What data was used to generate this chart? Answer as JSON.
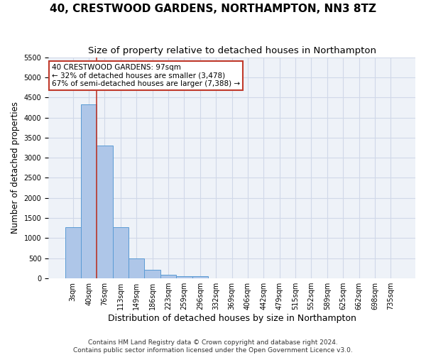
{
  "title": "40, CRESTWOOD GARDENS, NORTHAMPTON, NN3 8TZ",
  "subtitle": "Size of property relative to detached houses in Northampton",
  "xlabel": "Distribution of detached houses by size in Northampton",
  "ylabel": "Number of detached properties",
  "bar_values": [
    1270,
    4330,
    3300,
    1280,
    490,
    210,
    85,
    60,
    55,
    0,
    0,
    0,
    0,
    0,
    0,
    0,
    0,
    0,
    0,
    0,
    0
  ],
  "bar_labels": [
    "3sqm",
    "40sqm",
    "76sqm",
    "113sqm",
    "149sqm",
    "186sqm",
    "223sqm",
    "259sqm",
    "296sqm",
    "332sqm",
    "369sqm",
    "406sqm",
    "442sqm",
    "479sqm",
    "515sqm",
    "552sqm",
    "589sqm",
    "625sqm",
    "662sqm",
    "698sqm",
    "735sqm"
  ],
  "bar_color": "#aec6e8",
  "bar_edge_color": "#5a9bd4",
  "grid_color": "#d0d8e8",
  "background_color": "#eef2f8",
  "vline_x_index": 2,
  "vline_color": "#c0392b",
  "annotation_text": "40 CRESTWOOD GARDENS: 97sqm\n← 32% of detached houses are smaller (3,478)\n67% of semi-detached houses are larger (7,388) →",
  "annotation_box_color": "white",
  "annotation_box_edge_color": "#c0392b",
  "ylim": [
    0,
    5500
  ],
  "yticks": [
    0,
    500,
    1000,
    1500,
    2000,
    2500,
    3000,
    3500,
    4000,
    4500,
    5000,
    5500
  ],
  "footer": "Contains HM Land Registry data © Crown copyright and database right 2024.\nContains public sector information licensed under the Open Government Licence v3.0.",
  "title_fontsize": 11,
  "subtitle_fontsize": 9.5,
  "xlabel_fontsize": 9,
  "ylabel_fontsize": 8.5,
  "tick_fontsize": 7,
  "footer_fontsize": 6.5
}
